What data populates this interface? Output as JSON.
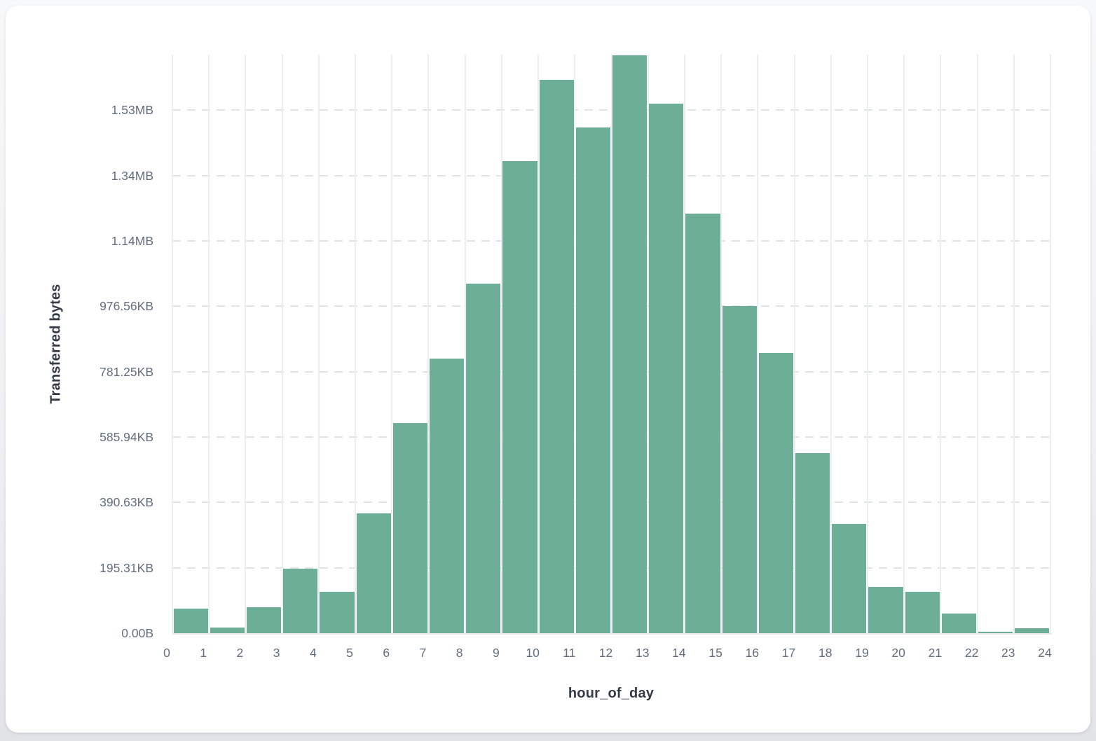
{
  "card": {
    "background": "#ffffff"
  },
  "chart_data": {
    "type": "bar",
    "title": "",
    "xlabel": "hour_of_day",
    "ylabel": "Transferred bytes",
    "x_bin_start_hours": [
      0,
      1,
      2,
      3,
      4,
      5,
      6,
      7,
      8,
      9,
      10,
      11,
      12,
      13,
      14,
      15,
      16,
      17,
      18,
      19,
      20,
      21,
      22,
      23
    ],
    "values_bytes": [
      76000,
      17000,
      80000,
      198000,
      127000,
      367000,
      643000,
      839000,
      1069000,
      1445000,
      1693000,
      1548000,
      1768000,
      1620000,
      1284000,
      1000000,
      858000,
      550000,
      335000,
      141000,
      126000,
      59000,
      4700,
      14000
    ],
    "x_tick_labels": [
      "0",
      "1",
      "2",
      "3",
      "4",
      "5",
      "6",
      "7",
      "8",
      "9",
      "10",
      "11",
      "12",
      "13",
      "14",
      "15",
      "16",
      "17",
      "18",
      "19",
      "20",
      "21",
      "22",
      "23",
      "24"
    ],
    "y_ticks": [
      {
        "label": "0.00B",
        "bytes": 0
      },
      {
        "label": "195.31KB",
        "bytes": 200000
      },
      {
        "label": "390.63KB",
        "bytes": 400000
      },
      {
        "label": "585.94KB",
        "bytes": 600000
      },
      {
        "label": "781.25KB",
        "bytes": 800000
      },
      {
        "label": "976.56KB",
        "bytes": 1000000
      },
      {
        "label": "1.14MB",
        "bytes": 1200000
      },
      {
        "label": "1.34MB",
        "bytes": 1400000
      },
      {
        "label": "1.53MB",
        "bytes": 1600000
      }
    ],
    "ylim": [
      0,
      1770000
    ],
    "bar_color": "#6DAE97",
    "grid": true,
    "legend_position": "none"
  }
}
